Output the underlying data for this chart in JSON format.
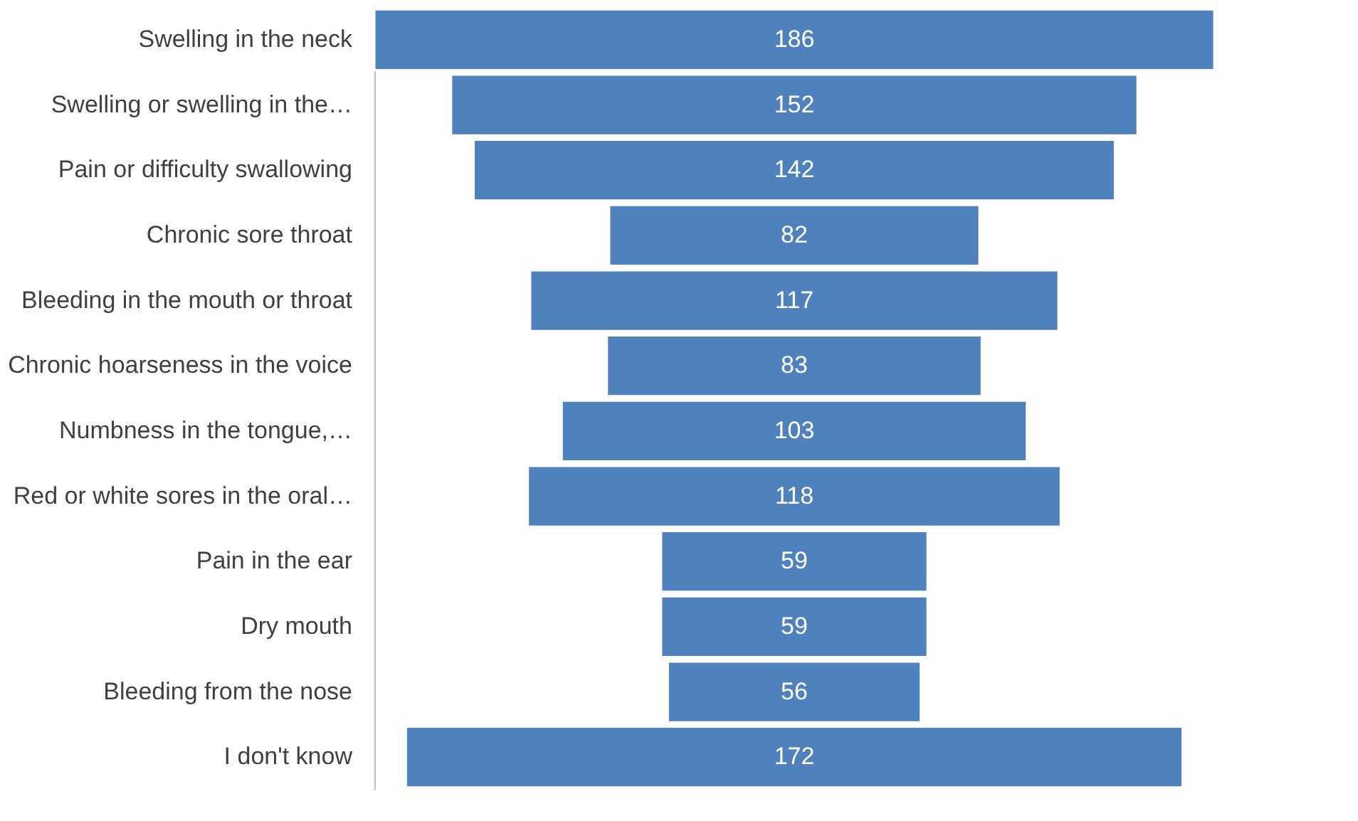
{
  "chart_data": {
    "type": "other",
    "data_labels": true,
    "categories": [
      "Swelling in the neck",
      "Swelling or swelling in the…",
      "Pain or difficulty swallowing",
      "Chronic sore throat",
      "Bleeding in the mouth or throat",
      "Chronic hoarseness in the voice",
      "Numbness in the tongue,…",
      "Red or white sores in the oral…",
      "Pain in the ear",
      "Dry mouth",
      "Bleeding from the nose",
      "I don't know"
    ],
    "values": [
      186,
      152,
      142,
      82,
      117,
      83,
      103,
      118,
      59,
      59,
      56,
      172
    ],
    "color": "#4f81bd"
  }
}
